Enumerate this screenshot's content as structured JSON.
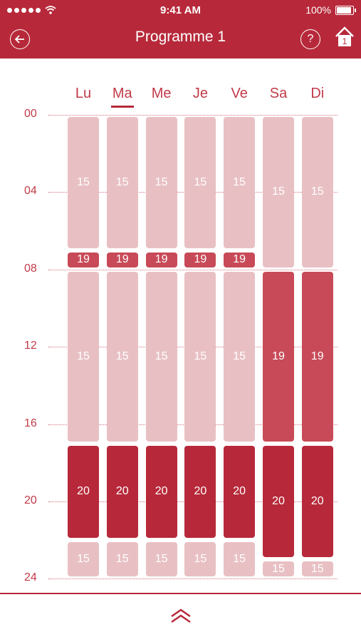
{
  "status": {
    "time": "9:41 AM",
    "battery": "100%"
  },
  "header": {
    "title": "Programme 1",
    "help": "?",
    "home_badge": "1"
  },
  "days": [
    "Lu",
    "Ma",
    "Me",
    "Je",
    "Ve",
    "Sa",
    "Di"
  ],
  "selected_day": 1,
  "hours": [
    "00",
    "04",
    "08",
    "12",
    "16",
    "20",
    "24"
  ],
  "colors": {
    "15": "#e8c0c4",
    "19": "#c84a58",
    "20": "#b7293a",
    "accent": "#b7293a"
  },
  "schedule": [
    [
      {
        "start": 0,
        "end": 7,
        "temp": 15
      },
      {
        "start": 7,
        "end": 8,
        "temp": 19
      },
      {
        "start": 8,
        "end": 17,
        "temp": 15
      },
      {
        "start": 17,
        "end": 22,
        "temp": 20
      },
      {
        "start": 22,
        "end": 24,
        "temp": 15
      }
    ],
    [
      {
        "start": 0,
        "end": 7,
        "temp": 15
      },
      {
        "start": 7,
        "end": 8,
        "temp": 19
      },
      {
        "start": 8,
        "end": 17,
        "temp": 15
      },
      {
        "start": 17,
        "end": 22,
        "temp": 20
      },
      {
        "start": 22,
        "end": 24,
        "temp": 15
      }
    ],
    [
      {
        "start": 0,
        "end": 7,
        "temp": 15
      },
      {
        "start": 7,
        "end": 8,
        "temp": 19
      },
      {
        "start": 8,
        "end": 17,
        "temp": 15
      },
      {
        "start": 17,
        "end": 22,
        "temp": 20
      },
      {
        "start": 22,
        "end": 24,
        "temp": 15
      }
    ],
    [
      {
        "start": 0,
        "end": 7,
        "temp": 15
      },
      {
        "start": 7,
        "end": 8,
        "temp": 19
      },
      {
        "start": 8,
        "end": 17,
        "temp": 15
      },
      {
        "start": 17,
        "end": 22,
        "temp": 20
      },
      {
        "start": 22,
        "end": 24,
        "temp": 15
      }
    ],
    [
      {
        "start": 0,
        "end": 7,
        "temp": 15
      },
      {
        "start": 7,
        "end": 8,
        "temp": 19
      },
      {
        "start": 8,
        "end": 17,
        "temp": 15
      },
      {
        "start": 17,
        "end": 22,
        "temp": 20
      },
      {
        "start": 22,
        "end": 24,
        "temp": 15
      }
    ],
    [
      {
        "start": 0,
        "end": 8,
        "temp": 15
      },
      {
        "start": 8,
        "end": 17,
        "temp": 19
      },
      {
        "start": 17,
        "end": 23,
        "temp": 20
      },
      {
        "start": 23,
        "end": 24,
        "temp": 15
      }
    ],
    [
      {
        "start": 0,
        "end": 8,
        "temp": 15
      },
      {
        "start": 8,
        "end": 17,
        "temp": 19
      },
      {
        "start": 17,
        "end": 23,
        "temp": 20
      },
      {
        "start": 23,
        "end": 24,
        "temp": 15
      }
    ]
  ]
}
